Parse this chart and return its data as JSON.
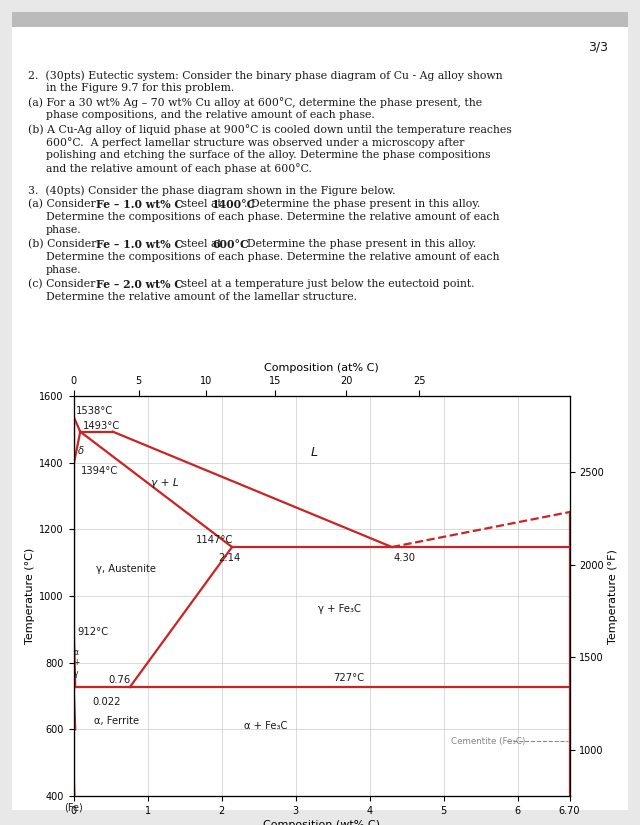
{
  "page_color": "#e8e8e8",
  "content_bg": "#ffffff",
  "text_color": "#1a1a1a",
  "red_color": "#cc2222",
  "gray_color": "#888888",
  "page_number": "3/3",
  "yticks_left": [
    400,
    600,
    800,
    1000,
    1200,
    1400,
    1600
  ],
  "ytick_labels_left": [
    "400",
    "600",
    "800",
    "1000",
    "1200",
    "1400",
    "1600"
  ],
  "xticks_wt": [
    0,
    1,
    2,
    3,
    4,
    5,
    6,
    6.7
  ],
  "xtick_labels_wt": [
    "0",
    "1",
    "2",
    "3",
    "4",
    "5",
    "6",
    "6.70"
  ],
  "at_pct_ticks": [
    0,
    5,
    10,
    15,
    20,
    25
  ],
  "at_pct_wt_equiv": [
    0,
    0.88,
    1.79,
    2.72,
    3.68,
    4.67
  ],
  "f_ticks_c": [
    538,
    816,
    1093,
    1371
  ],
  "f_labels": [
    "1000",
    "1500",
    "2000",
    "2500"
  ]
}
